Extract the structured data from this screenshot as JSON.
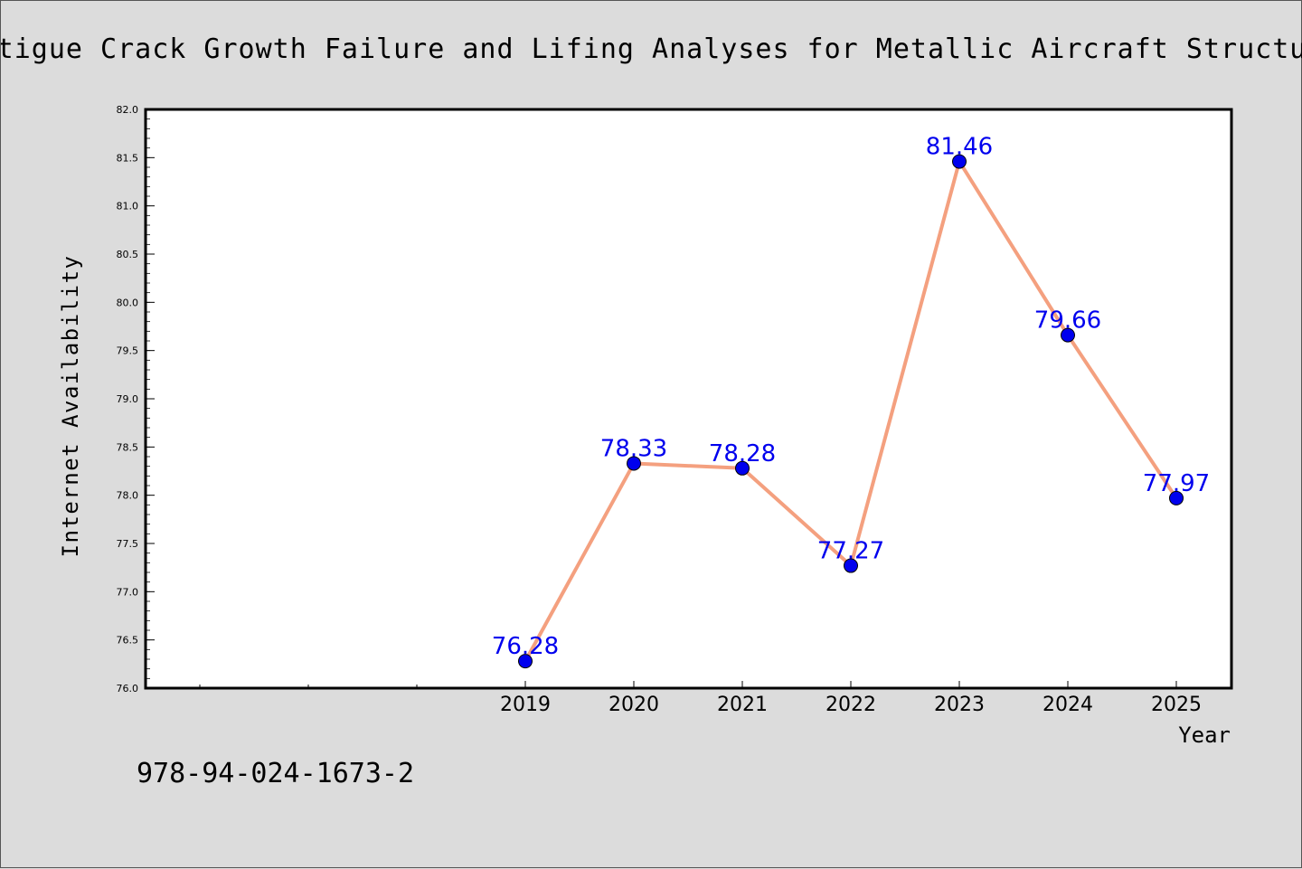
{
  "chart_data": {
    "type": "line",
    "title": "Fatigue Crack Growth Failure and Lifing Analyses for Metallic Aircraft Structure",
    "xlabel": "Year",
    "ylabel": "Internet Availability",
    "annotation": "978-94-024-1673-2",
    "categories": [
      "2019",
      "2020",
      "2021",
      "2022",
      "2023",
      "2024",
      "2025"
    ],
    "series": [
      {
        "values": [
          76.28,
          78.33,
          78.28,
          77.27,
          81.46,
          79.66,
          77.97
        ]
      }
    ],
    "data_labels": [
      "76.28",
      "78.33",
      "78.28",
      "77.27",
      "81.46",
      "79.66",
      "77.97"
    ],
    "ylim": [
      76.0,
      82.0
    ],
    "yticks": [
      "76.0",
      "76.5",
      "77.0",
      "77.5",
      "78.0",
      "78.5",
      "79.0",
      "79.5",
      "80.0",
      "80.5",
      "81.0",
      "81.5",
      "82.0"
    ],
    "grid": false,
    "legend": "none",
    "colors": {
      "line": "#f4a07f",
      "marker": "#0000ee",
      "label": "#0000ee",
      "plot_bg": "#ffffff",
      "page_bg": "#dcdcdc"
    }
  }
}
